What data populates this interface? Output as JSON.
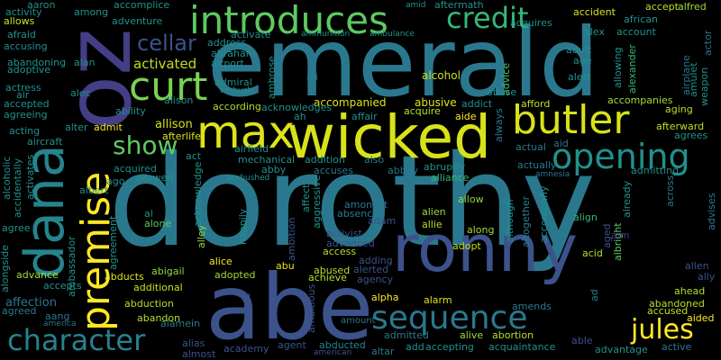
{
  "words": [
    {
      "id": "dorothy",
      "text": "dorothy",
      "color": "#2a788e"
    },
    {
      "id": "emerald",
      "text": "emerald",
      "color": "#2a788e"
    },
    {
      "id": "oz",
      "text": "oz",
      "color": "#433e85"
    },
    {
      "id": "abe",
      "text": "abe",
      "color": "#3b528b"
    },
    {
      "id": "ronny",
      "text": "ronny",
      "color": "#3b528b"
    },
    {
      "id": "wicked",
      "text": "wicked",
      "color": "#d8e219"
    },
    {
      "id": "dana",
      "text": "dana",
      "color": "#25848e"
    },
    {
      "id": "max",
      "text": "max",
      "color": "#dde318"
    },
    {
      "id": "premise",
      "text": "premise",
      "color": "#fde725"
    },
    {
      "id": "butler",
      "text": "butler",
      "color": "#d8e219"
    },
    {
      "id": "introduces",
      "text": "introduces",
      "color": "#5ec962"
    },
    {
      "id": "curt",
      "text": "curt",
      "color": "#7ad151"
    },
    {
      "id": "opening",
      "text": "opening",
      "color": "#21918c"
    },
    {
      "id": "sequence",
      "text": "sequence",
      "color": "#2a788e"
    },
    {
      "id": "credit",
      "text": "credit",
      "color": "#35b779"
    },
    {
      "id": "character",
      "text": "character",
      "color": "#26828e"
    },
    {
      "id": "show",
      "text": "show",
      "color": "#5ec962"
    },
    {
      "id": "jules",
      "text": "jules",
      "color": "#fde725"
    },
    {
      "id": "cellar",
      "text": "cellar",
      "color": "#3b528b"
    },
    {
      "id": "activated",
      "text": "activated",
      "color": "#c2df23"
    },
    {
      "id": "alcohol",
      "text": "alcohol",
      "color": "#c8e020"
    },
    {
      "id": "accompanied",
      "text": "accompanied",
      "color": "#dde318"
    },
    {
      "id": "abusive",
      "text": "abusive",
      "color": "#dde318"
    },
    {
      "id": "allison",
      "text": "allison",
      "color": "#d8e219"
    },
    {
      "id": "afterlife",
      "text": "afterlife",
      "color": "#dde318"
    },
    {
      "id": "accused",
      "text": "accused",
      "color": "#c2df23"
    },
    {
      "id": "accident",
      "text": "accident",
      "color": "#d8e219"
    },
    {
      "id": "accept",
      "text": "accept",
      "color": "#c2df23"
    },
    {
      "id": "alfred",
      "text": "alfred",
      "color": "#a0da39"
    },
    {
      "id": "allows",
      "text": "allows",
      "color": "#c8e020"
    },
    {
      "id": "afford",
      "text": "afford",
      "color": "#c2df23"
    },
    {
      "id": "alien",
      "text": "alien",
      "color": "#a0da39"
    },
    {
      "id": "allie",
      "text": "allie",
      "color": "#b5de2b"
    },
    {
      "id": "alpha",
      "text": "alpha",
      "color": "#fde725"
    },
    {
      "id": "alarm",
      "text": "alarm",
      "color": "#dde318"
    },
    {
      "id": "abandoned",
      "text": "abandoned",
      "color": "#b5de2b"
    },
    {
      "id": "ahead",
      "text": "ahead",
      "color": "#b5de2b"
    },
    {
      "id": "aided",
      "text": "aided",
      "color": "#fde725"
    },
    {
      "id": "acquire",
      "text": "acquire",
      "color": "#b5de2b"
    },
    {
      "id": "aide",
      "text": "aide",
      "color": "#fde725"
    },
    {
      "id": "admit",
      "text": "admit",
      "color": "#fde725"
    },
    {
      "id": "acid",
      "text": "acid",
      "color": "#b5de2b"
    },
    {
      "id": "advance",
      "text": "advance",
      "color": "#a0da39"
    },
    {
      "id": "alone",
      "text": "alone",
      "color": "#5ec962"
    },
    {
      "id": "alice",
      "text": "alice",
      "color": "#fde725"
    },
    {
      "id": "abu",
      "text": "abu",
      "color": "#dde318"
    },
    {
      "id": "abused",
      "text": "abused",
      "color": "#b5de2b"
    },
    {
      "id": "achieve",
      "text": "achieve",
      "color": "#b5de2b"
    },
    {
      "id": "alive",
      "text": "alive",
      "color": "#a0da39"
    },
    {
      "id": "abortion",
      "text": "abortion",
      "color": "#b5de2b"
    },
    {
      "id": "access",
      "text": "access",
      "color": "#b5de2b"
    },
    {
      "id": "adopt",
      "text": "adopt",
      "color": "#c2df23"
    },
    {
      "id": "along",
      "text": "along",
      "color": "#a0da39"
    },
    {
      "id": "allow",
      "text": "allow",
      "color": "#8fd744"
    },
    {
      "id": "adopted",
      "text": "adopted",
      "color": "#a0da39"
    },
    {
      "id": "abigail",
      "text": "abigail",
      "color": "#8fd744"
    },
    {
      "id": "abducts",
      "text": "abducts",
      "color": "#dde318"
    },
    {
      "id": "additional",
      "text": "additional",
      "color": "#c8e020"
    },
    {
      "id": "abduction",
      "text": "abduction",
      "color": "#b5de2b"
    },
    {
      "id": "abandon",
      "text": "abandon",
      "color": "#b5de2b"
    },
    {
      "id": "accompanies",
      "text": "accompanies",
      "color": "#a0da39"
    },
    {
      "id": "afterward",
      "text": "afterward",
      "color": "#c2df23"
    },
    {
      "id": "aging",
      "text": "aging",
      "color": "#b5de2b"
    },
    {
      "id": "according",
      "text": "according",
      "color": "#b5de2b"
    },
    {
      "id": "alley",
      "text": "alley",
      "color": "#8fd744"
    },
    {
      "id": "alexander",
      "text": "alexander",
      "color": "#35b779"
    },
    {
      "id": "albright",
      "text": "albright",
      "color": "#5ec962"
    },
    {
      "id": "ambition",
      "text": "ambition",
      "color": "#3b528b"
    },
    {
      "id": "ambitious",
      "text": "ambitious",
      "color": "#3b528b"
    },
    {
      "id": "alternate",
      "text": "alternate",
      "color": "#3b528b"
    },
    {
      "id": "airplane",
      "text": "airplane",
      "color": "#2a788e"
    },
    {
      "id": "actor",
      "text": "actor",
      "color": "#2a788e"
    },
    {
      "id": "alarm2",
      "text": "ali",
      "color": "#2a788e"
    },
    {
      "id": "advice",
      "text": "advice",
      "color": "#4ac16d"
    },
    {
      "id": "always",
      "text": "always",
      "color": "#2a788e"
    },
    {
      "id": "although",
      "text": "although",
      "color": "#21918c"
    },
    {
      "id": "altogether",
      "text": "altogether",
      "color": "#26828e"
    },
    {
      "id": "accompany",
      "text": "accompany",
      "color": "#21918c"
    },
    {
      "id": "already",
      "text": "already",
      "color": "#21918c"
    },
    {
      "id": "across",
      "text": "across",
      "color": "#2a788e"
    },
    {
      "id": "advises",
      "text": "advises",
      "color": "#2a788e"
    },
    {
      "id": "ad",
      "text": "ad",
      "color": "#2a788e"
    },
    {
      "id": "aim",
      "text": "aim",
      "color": "#433e85"
    },
    {
      "id": "aged",
      "text": "aged",
      "color": "#3b528b"
    },
    {
      "id": "allen",
      "text": "allen",
      "color": "#3b528b"
    },
    {
      "id": "ally",
      "text": "ally",
      "color": "#3b528b"
    },
    {
      "id": "align",
      "text": "align",
      "color": "#35b779"
    },
    {
      "id": "aid",
      "text": "aid",
      "color": "#2a788e"
    },
    {
      "id": "actual",
      "text": "actual",
      "color": "#2a788e"
    },
    {
      "id": "actually",
      "text": "actually",
      "color": "#2a788e"
    },
    {
      "id": "amnesia",
      "text": "amnesia",
      "color": "#2a788e"
    },
    {
      "id": "abruptly",
      "text": "abruptly",
      "color": "#21918c"
    },
    {
      "id": "alliance",
      "text": "alliance",
      "color": "#35b779"
    },
    {
      "id": "abbey",
      "text": "abbey",
      "color": "#2a788e"
    },
    {
      "id": "also",
      "text": "also",
      "color": "#2a788e"
    },
    {
      "id": "accuses",
      "text": "accuses",
      "color": "#2a788e"
    },
    {
      "id": "addition",
      "text": "addition",
      "color": "#21918c"
    },
    {
      "id": "amongst",
      "text": "amongst",
      "color": "#2a788e"
    },
    {
      "id": "adam",
      "text": "adam",
      "color": "#3b528b"
    },
    {
      "id": "absence",
      "text": "absence",
      "color": "#2a788e"
    },
    {
      "id": "activist",
      "text": "activist",
      "color": "#3b528b"
    },
    {
      "id": "advanced",
      "text": "advanced",
      "color": "#3b528b"
    },
    {
      "id": "adding",
      "text": "adding",
      "color": "#3b528b"
    },
    {
      "id": "alerted",
      "text": "alerted",
      "color": "#3b528b"
    },
    {
      "id": "agency",
      "text": "agency",
      "color": "#3b528b"
    },
    {
      "id": "amends",
      "text": "amends",
      "color": "#2a788e"
    },
    {
      "id": "acquaintance",
      "text": "acquaintance",
      "color": "#21918c"
    },
    {
      "id": "accepting",
      "text": "accepting",
      "color": "#21918c"
    },
    {
      "id": "add",
      "text": "add",
      "color": "#21918c"
    },
    {
      "id": "altar",
      "text": "altar",
      "color": "#2a788e"
    },
    {
      "id": "abducted",
      "text": "abducted",
      "color": "#26828e"
    },
    {
      "id": "admitted",
      "text": "admitted",
      "color": "#2a788e"
    },
    {
      "id": "amount",
      "text": "amount",
      "color": "#2a788e"
    },
    {
      "id": "agent",
      "text": "agent",
      "color": "#3b528b"
    },
    {
      "id": "academy",
      "text": "academy",
      "color": "#3b528b"
    },
    {
      "id": "almost",
      "text": "almost",
      "color": "#3b528b"
    },
    {
      "id": "alias",
      "text": "alias",
      "color": "#3b528b"
    },
    {
      "id": "american",
      "text": "american",
      "color": "#3b528b"
    },
    {
      "id": "active",
      "text": "active",
      "color": "#2a788e"
    },
    {
      "id": "advantage",
      "text": "advantage",
      "color": "#21918c"
    },
    {
      "id": "able",
      "text": "able",
      "color": "#3b528b"
    },
    {
      "id": "alamein",
      "text": "alamein",
      "color": "#2a788e"
    },
    {
      "id": "aang",
      "text": "aang",
      "color": "#2a788e"
    },
    {
      "id": "agreed",
      "text": "agreed",
      "color": "#2a788e"
    },
    {
      "id": "america",
      "text": "america",
      "color": "#2a788e"
    },
    {
      "id": "affection",
      "text": "affection",
      "color": "#2a788e"
    },
    {
      "id": "alongside",
      "text": "alongside",
      "color": "#21918c"
    },
    {
      "id": "ambassador",
      "text": "ambassador",
      "color": "#21918c"
    },
    {
      "id": "agreement",
      "text": "agreement",
      "color": "#21918c"
    },
    {
      "id": "accepts",
      "text": "accepts",
      "color": "#21918c"
    },
    {
      "id": "agree",
      "text": "agree",
      "color": "#21918c"
    },
    {
      "id": "albert",
      "text": "albert",
      "color": "#21918c"
    },
    {
      "id": "ago",
      "text": "ago",
      "color": "#21918c"
    },
    {
      "id": "alcoholic",
      "text": "alcoholic",
      "color": "#21918c"
    },
    {
      "id": "accidentally",
      "text": "accidentally",
      "color": "#21918c"
    },
    {
      "id": "activates",
      "text": "activates",
      "color": "#21918c"
    },
    {
      "id": "acting",
      "text": "acting",
      "color": "#21918c"
    },
    {
      "id": "aircraft",
      "text": "aircraft",
      "color": "#21918c"
    },
    {
      "id": "agreeing",
      "text": "agreeing",
      "color": "#21918c"
    },
    {
      "id": "actress",
      "text": "actress",
      "color": "#21918c"
    },
    {
      "id": "air",
      "text": "air",
      "color": "#21918c"
    },
    {
      "id": "accepted",
      "text": "accepted",
      "color": "#21918c"
    },
    {
      "id": "alec",
      "text": "alec",
      "color": "#21918c"
    },
    {
      "id": "alan",
      "text": "alan",
      "color": "#21918c"
    },
    {
      "id": "abandoning",
      "text": "abandoning",
      "color": "#21918c"
    },
    {
      "id": "adoptive",
      "text": "adoptive",
      "color": "#21918c"
    },
    {
      "id": "accusing",
      "text": "accusing",
      "color": "#21918c"
    },
    {
      "id": "afraid",
      "text": "afraid",
      "color": "#21918c"
    },
    {
      "id": "adventure",
      "text": "adventure",
      "color": "#21918c"
    },
    {
      "id": "among",
      "text": "among",
      "color": "#21918c"
    },
    {
      "id": "accomplice",
      "text": "accomplice",
      "color": "#21918c"
    },
    {
      "id": "aaron",
      "text": "aaron",
      "color": "#21918c"
    },
    {
      "id": "activity",
      "text": "activity",
      "color": "#21918c"
    },
    {
      "id": "address",
      "text": "address",
      "color": "#21918c"
    },
    {
      "id": "activate",
      "text": "activate",
      "color": "#21918c"
    },
    {
      "id": "abraham",
      "text": "abraham",
      "color": "#21918c"
    },
    {
      "id": "airport",
      "text": "airport",
      "color": "#21918c"
    },
    {
      "id": "admiral",
      "text": "admiral",
      "color": "#21918c"
    },
    {
      "id": "ambush",
      "text": "ambush",
      "color": "#21918c"
    },
    {
      "id": "ambrose",
      "text": "ambrose",
      "color": "#21918c"
    },
    {
      "id": "ammunition",
      "text": "ammunition",
      "color": "#21918c"
    },
    {
      "id": "ambulance",
      "text": "ambulance",
      "color": "#21918c"
    },
    {
      "id": "amid",
      "text": "amid",
      "color": "#21918c"
    },
    {
      "id": "aftermath",
      "text": "aftermath",
      "color": "#21918c"
    },
    {
      "id": "acknowledges",
      "text": "acknowledges",
      "color": "#21918c"
    },
    {
      "id": "ah",
      "text": "ah",
      "color": "#21918c"
    },
    {
      "id": "affair",
      "text": "affair",
      "color": "#21918c"
    },
    {
      "id": "addict",
      "text": "addict",
      "color": "#21918c"
    },
    {
      "id": "abuse",
      "text": "abuse",
      "color": "#21918c"
    },
    {
      "id": "ability",
      "text": "ability",
      "color": "#21918c"
    },
    {
      "id": "alison",
      "text": "alison",
      "color": "#21918c"
    },
    {
      "id": "alter",
      "text": "alter",
      "color": "#21918c"
    },
    {
      "id": "airfield",
      "text": "airfield",
      "color": "#21918c"
    },
    {
      "id": "act",
      "text": "act",
      "color": "#21918c"
    },
    {
      "id": "acquired",
      "text": "acquired",
      "color": "#21918c"
    },
    {
      "id": "allowed",
      "text": "allowed",
      "color": "#21918c"
    },
    {
      "id": "mechanical",
      "text": "mechanical",
      "color": "#21918c"
    },
    {
      "id": "abby",
      "text": "abby",
      "color": "#21918c"
    },
    {
      "id": "ambushed",
      "text": "ambushed",
      "color": "#21918c"
    },
    {
      "id": "acknowledge",
      "text": "acknowledge",
      "color": "#21918c"
    },
    {
      "id": "affect",
      "text": "affect",
      "color": "#21918c"
    },
    {
      "id": "aggressive",
      "text": "aggressive",
      "color": "#21918c"
    },
    {
      "id": "al",
      "text": "al",
      "color": "#21918c"
    },
    {
      "id": "happily",
      "text": "happily",
      "color": "#21918c"
    },
    {
      "id": "account",
      "text": "account",
      "color": "#21918c"
    },
    {
      "id": "alex",
      "text": "alex",
      "color": "#21918c"
    },
    {
      "id": "adult",
      "text": "adult",
      "color": "#21918c"
    },
    {
      "id": "age",
      "text": "age",
      "color": "#21918c"
    },
    {
      "id": "alert",
      "text": "alert",
      "color": "#21918c"
    },
    {
      "id": "acquires",
      "text": "acquires",
      "color": "#21918c"
    },
    {
      "id": "african",
      "text": "african",
      "color": "#21918c"
    },
    {
      "id": "allowing",
      "text": "allowing",
      "color": "#21918c"
    },
    {
      "id": "amulet",
      "text": "amulet",
      "color": "#21918c"
    },
    {
      "id": "weapon",
      "text": "weapon",
      "color": "#21918c"
    },
    {
      "id": "admitting",
      "text": "admitting",
      "color": "#21918c"
    },
    {
      "id": "agrees",
      "text": "agrees",
      "color": "#21918c"
    }
  ]
}
